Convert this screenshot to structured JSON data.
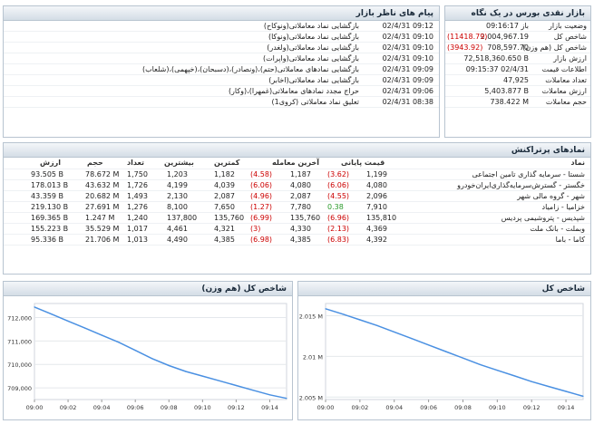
{
  "snapshot": {
    "title": "بازار نقدی بورس در یک نگاه",
    "rows": [
      {
        "label": "وضعیت بازار",
        "value": "باز 09:16:17",
        "change": ""
      },
      {
        "label": "شاخص کل",
        "value": "2,004,967.19",
        "change": "(11418.79)"
      },
      {
        "label": "شاخص کل (هم وزن)",
        "value": "708,597.70",
        "change": "(3943.92)"
      },
      {
        "label": "ارزش بازار",
        "value": "72,518,360.650 B",
        "change": ""
      },
      {
        "label": "اطلاعات قیمت",
        "value": "09:15:37 02/4/31",
        "change": ""
      },
      {
        "label": "تعداد معاملات",
        "value": "47,925",
        "change": ""
      },
      {
        "label": "ارزش معاملات",
        "value": "5,403.877 B",
        "change": ""
      },
      {
        "label": "حجم معاملات",
        "value": "738.422 M",
        "change": ""
      }
    ]
  },
  "messages": {
    "title": "پیام های ناظر بازار",
    "rows": [
      {
        "date": "02/4/31 09:12",
        "text": "بازگشایی نماد معاملاتی(ونوکاح)"
      },
      {
        "date": "02/4/31 09:10",
        "text": "بازگشایی نماد معاملاتی(ونوکا)"
      },
      {
        "date": "02/4/31 09:10",
        "text": "بازگشایی نماد معاملاتی(ولغدر)"
      },
      {
        "date": "02/4/31 09:10",
        "text": "بازگشایی نماد معاملاتی(واپرات)"
      },
      {
        "date": "02/4/31 09:09",
        "text": "بازگشایی نمادهای معاملاتی(حتم)،(ونصادر)،(دسبحان)،(خپهمی)،(شلعاب)"
      },
      {
        "date": "02/4/31 09:09",
        "text": "بازگشایی نماد معاملاتی(اخابر)"
      },
      {
        "date": "02/4/31 09:06",
        "text": "حراج مجدد نمادهای معاملاتی(غمهرا)،(وکار)"
      },
      {
        "date": "02/4/31 08:38",
        "text": "تعلیق نماد معاملاتی (کروی1)"
      }
    ]
  },
  "influential": {
    "title": "نمادهای پرتراکنش",
    "headers": {
      "symbol": "نماد",
      "final_price": "قیمت پایانی",
      "last_trade": "آخرین معامله",
      "min": "کمترین",
      "max": "بیشترین",
      "count": "تعداد",
      "volume": "حجم",
      "value": "ارزش"
    },
    "rows": [
      {
        "symbol": "شستا - سرمایه گذاری تامین اجتماعی",
        "final": "1,199",
        "final_chg": "(3.62)",
        "last": "1,187",
        "last_chg": "(4.58)",
        "min": "1,182",
        "max": "1,203",
        "count": "1,750",
        "volume": "78.672 M",
        "value": "93.505 B",
        "final_color": "red",
        "last_color": "red"
      },
      {
        "symbol": "خگستر - گسترش‌سرمایه‌گذاری‌ایران‌خودرو",
        "final": "4,080",
        "final_chg": "(6.06)",
        "last": "4,080",
        "last_chg": "(6.06)",
        "min": "4,039",
        "max": "4,199",
        "count": "1,726",
        "volume": "43.632 M",
        "value": "178.013 B",
        "final_color": "red",
        "last_color": "red"
      },
      {
        "symbol": "شهر - گروه مالی شهر",
        "final": "2,096",
        "final_chg": "(4.55)",
        "last": "2,087",
        "last_chg": "(4.96)",
        "min": "2,087",
        "max": "2,130",
        "count": "1,493",
        "volume": "20.682 M",
        "value": "43.359 B",
        "final_color": "red",
        "last_color": "red"
      },
      {
        "symbol": "خزامیا - زامیاد",
        "final": "7,910",
        "final_chg": "0.38",
        "last": "7,780",
        "last_chg": "(1.27)",
        "min": "7,650",
        "max": "8,100",
        "count": "1,276",
        "volume": "27.691 M",
        "value": "219.130 B",
        "final_color": "green",
        "last_color": "red"
      },
      {
        "symbol": "شپدیس - پتروشیمی پردیس",
        "final": "135,810",
        "final_chg": "(6.96)",
        "last": "135,760",
        "last_chg": "(6.99)",
        "min": "135,760",
        "max": "137,800",
        "count": "1,240",
        "volume": "1.247 M",
        "value": "169.365 B",
        "final_color": "red",
        "last_color": "red"
      },
      {
        "symbol": "وبملت - بانک ملت",
        "final": "4,369",
        "final_chg": "(2.13)",
        "last": "4,330",
        "last_chg": "(3)",
        "min": "4,321",
        "max": "4,461",
        "count": "1,017",
        "volume": "35.529 M",
        "value": "155.223 B",
        "final_color": "red",
        "last_color": "red"
      },
      {
        "symbol": "کاما - باما",
        "final": "4,392",
        "final_chg": "(6.83)",
        "last": "4,385",
        "last_chg": "(6.98)",
        "min": "4,385",
        "max": "4,490",
        "count": "1,013",
        "volume": "21.706 M",
        "value": "95.336 B",
        "final_color": "red",
        "last_color": "red"
      }
    ]
  },
  "chart_data": [
    {
      "type": "line",
      "title": "شاخص کل (هم وزن)",
      "x": [
        "09:00",
        "09:01",
        "09:02",
        "09:03",
        "09:04",
        "09:05",
        "09:06",
        "09:07",
        "09:08",
        "09:09",
        "09:10",
        "09:11",
        "09:12",
        "09:13",
        "09:14",
        "09:15"
      ],
      "x_ticks": [
        "09:00",
        "09:02",
        "09:04",
        "09:06",
        "09:08",
        "09:10",
        "09:12",
        "09:14"
      ],
      "values": [
        712450,
        712150,
        711850,
        711550,
        711250,
        710950,
        710600,
        710250,
        709950,
        709700,
        709500,
        709300,
        709100,
        708900,
        708700,
        708550
      ],
      "y_ticks": [
        709000,
        710000,
        711000,
        712000
      ],
      "y_tick_labels": [
        "709,000",
        "710,000",
        "711,000",
        "712,000"
      ],
      "ylim": [
        708500,
        712600
      ],
      "color": "#4a90e2"
    },
    {
      "type": "line",
      "title": "شاخص کل",
      "x": [
        "09:00",
        "09:01",
        "09:02",
        "09:03",
        "09:04",
        "09:05",
        "09:06",
        "09:07",
        "09:08",
        "09:09",
        "09:10",
        "09:11",
        "09:12",
        "09:13",
        "09:14",
        "09:15"
      ],
      "x_ticks": [
        "09:00",
        "09:02",
        "09:04",
        "09:06",
        "09:08",
        "09:10",
        "09:12",
        "09:14"
      ],
      "values": [
        2015850,
        2015200,
        2014500,
        2013800,
        2013000,
        2012200,
        2011400,
        2010600,
        2009800,
        2009000,
        2008300,
        2007600,
        2006900,
        2006300,
        2005700,
        2005100
      ],
      "y_ticks": [
        2005000,
        2010000,
        2015000
      ],
      "y_tick_labels": [
        "2.005 M",
        "2.01 M",
        "2.015 M"
      ],
      "ylim": [
        2004700,
        2016500
      ],
      "color": "#4a90e2"
    }
  ]
}
